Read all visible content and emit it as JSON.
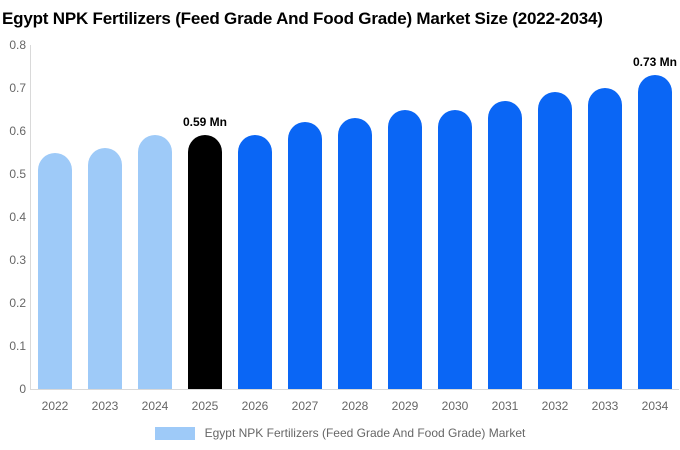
{
  "chart_data": {
    "type": "bar",
    "title": "Egypt NPK Fertilizers (Feed Grade And Food Grade) Market Size (2022-2034)",
    "categories": [
      "2022",
      "2023",
      "2024",
      "2025",
      "2026",
      "2027",
      "2028",
      "2029",
      "2030",
      "2031",
      "2032",
      "2033",
      "2034"
    ],
    "values": [
      0.55,
      0.56,
      0.59,
      0.59,
      0.59,
      0.62,
      0.63,
      0.65,
      0.65,
      0.67,
      0.69,
      0.7,
      0.73
    ],
    "unit": "Mn",
    "xlabel": "",
    "ylabel": "",
    "ylim": [
      0,
      0.8
    ],
    "ytick_interval": 0.1,
    "ytick_labels": [
      "0",
      "0.1",
      "0.2",
      "0.3",
      "0.4",
      "0.5",
      "0.6",
      "0.7",
      "0.8"
    ],
    "grid": false,
    "bar_roles": [
      "historical",
      "historical",
      "historical",
      "base_year",
      "forecast",
      "forecast",
      "forecast",
      "forecast",
      "forecast",
      "forecast",
      "forecast",
      "forecast",
      "forecast"
    ],
    "colors": {
      "historical": "#9ecaf8",
      "base_year": "#000000",
      "forecast": "#0a66f5",
      "axis_line": "#d9d9d9",
      "tick_text": "#666666",
      "title_text": "#000000"
    },
    "annotations": [
      {
        "category": "2025",
        "label": "0.59 Mn"
      },
      {
        "category": "2034",
        "label": "0.73 Mn"
      }
    ],
    "legend": {
      "label": "Egypt NPK Fertilizers (Feed Grade And Food Grade) Market",
      "swatch_color": "#9ecaf8",
      "position": "bottom-center"
    }
  }
}
